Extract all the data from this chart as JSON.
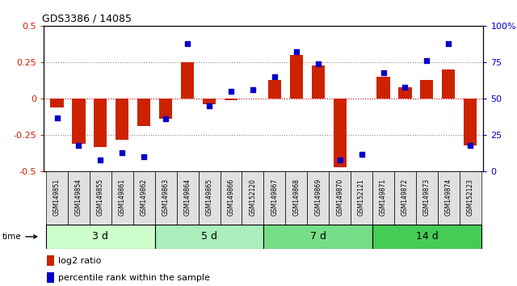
{
  "title": "GDS3386 / 14085",
  "samples": [
    "GSM149851",
    "GSM149854",
    "GSM149855",
    "GSM149861",
    "GSM149862",
    "GSM149863",
    "GSM149864",
    "GSM149865",
    "GSM149866",
    "GSM152120",
    "GSM149867",
    "GSM149868",
    "GSM149869",
    "GSM149870",
    "GSM152121",
    "GSM149871",
    "GSM149872",
    "GSM149873",
    "GSM149874",
    "GSM152123"
  ],
  "log2_ratio": [
    -0.06,
    -0.31,
    -0.33,
    -0.28,
    -0.19,
    -0.14,
    0.25,
    -0.04,
    -0.01,
    0.0,
    0.13,
    0.3,
    0.23,
    -0.47,
    0.0,
    0.15,
    0.08,
    0.13,
    0.2,
    -0.32
  ],
  "percentile": [
    37,
    18,
    8,
    13,
    10,
    36,
    88,
    45,
    55,
    56,
    65,
    82,
    74,
    8,
    12,
    68,
    58,
    76,
    88,
    18
  ],
  "groups": [
    {
      "label": "3 d",
      "start": 0,
      "end": 5,
      "color": "#ccffcc"
    },
    {
      "label": "5 d",
      "start": 5,
      "end": 10,
      "color": "#aaeebb"
    },
    {
      "label": "7 d",
      "start": 10,
      "end": 15,
      "color": "#77dd88"
    },
    {
      "label": "14 d",
      "start": 15,
      "end": 20,
      "color": "#44cc55"
    }
  ],
  "bar_color": "#cc2200",
  "dot_color": "#0000cc",
  "ylim_left": [
    -0.5,
    0.5
  ],
  "ylim_right": [
    0,
    100
  ],
  "yticks_left": [
    -0.5,
    -0.25,
    0.0,
    0.25,
    0.5
  ],
  "ytick_labels_left": [
    "-0.5",
    "-0.25",
    "0",
    "0.25",
    "0.5"
  ],
  "yticks_right": [
    0,
    25,
    50,
    75,
    100
  ],
  "ytick_labels_right": [
    "0",
    "25",
    "50",
    "75",
    "100%"
  ],
  "hlines": [
    -0.25,
    0.0,
    0.25
  ],
  "hline_colors": [
    "#888888",
    "#cc0000",
    "#888888"
  ],
  "hline_styles": [
    "dotted",
    "dotted",
    "dotted"
  ]
}
